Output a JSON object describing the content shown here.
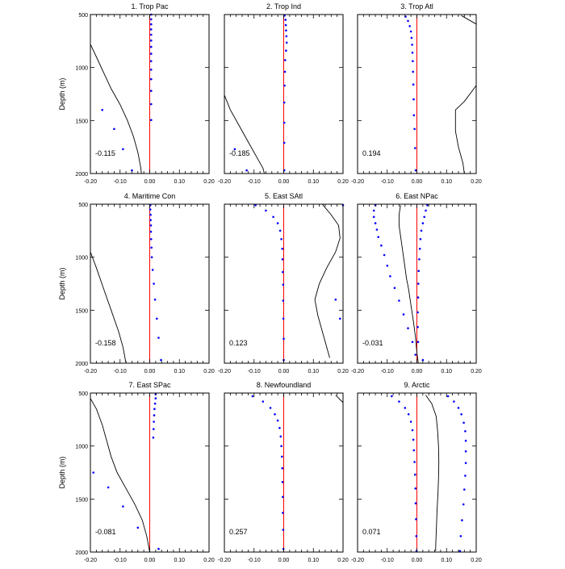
{
  "colors": {
    "zero_line": "#ff0000",
    "dots": "#0000ff",
    "curve": "#000000",
    "axes": "#000000"
  },
  "y_axis_label": "Depth (m)",
  "chart_data": [
    {
      "type": "scatter",
      "title": "1. Trop Pac",
      "annotation": "-0.115",
      "xlim": [
        -0.2,
        0.2
      ],
      "ylim": [
        2000,
        500
      ],
      "ylabel": "Depth (m)",
      "xticks": [
        "-0.20",
        "-0.10",
        "0.00",
        "0.10",
        "0.20"
      ],
      "yticks": [
        "500",
        "1000",
        "1500",
        "2000"
      ],
      "zero_line": 0.0,
      "dots": [
        [
          0.005,
          500
        ],
        [
          0.005,
          545
        ],
        [
          0.005,
          592
        ],
        [
          0.005,
          640
        ],
        [
          0.005,
          690
        ],
        [
          0.005,
          745
        ],
        [
          0.005,
          805
        ],
        [
          0.005,
          870
        ],
        [
          0.005,
          940
        ],
        [
          0.005,
          1020
        ],
        [
          0.005,
          1110
        ],
        [
          0.005,
          1220
        ],
        [
          0.005,
          1345
        ],
        [
          0.005,
          1495
        ],
        [
          -0.16,
          1400
        ],
        [
          -0.12,
          1580
        ],
        [
          -0.09,
          1770
        ],
        [
          -0.06,
          1970
        ]
      ],
      "curve": [
        [
          -0.2,
          780
        ],
        [
          -0.18,
          900
        ],
        [
          -0.155,
          1050
        ],
        [
          -0.13,
          1200
        ],
        [
          -0.1,
          1350
        ],
        [
          -0.075,
          1500
        ],
        [
          -0.055,
          1650
        ],
        [
          -0.04,
          1800
        ],
        [
          -0.03,
          1950
        ],
        [
          -0.028,
          2000
        ]
      ]
    },
    {
      "type": "scatter",
      "title": "2. Trop Ind",
      "annotation": "-0.185",
      "xlim": [
        -0.2,
        0.2
      ],
      "ylim": [
        2000,
        500
      ],
      "ylabel": "Depth (m)",
      "xticks": [
        "-0.20",
        "-0.10",
        "0.00",
        "0.10",
        "0.20"
      ],
      "yticks": [
        "500",
        "1000",
        "1500",
        "2000"
      ],
      "zero_line": 0.0,
      "dots": [
        [
          0.003,
          510
        ],
        [
          0.006,
          550
        ],
        [
          0.007,
          600
        ],
        [
          0.008,
          650
        ],
        [
          0.009,
          705
        ],
        [
          0.01,
          765
        ],
        [
          0.008,
          840
        ],
        [
          0.005,
          930
        ],
        [
          0.004,
          1040
        ],
        [
          0.003,
          1170
        ],
        [
          0.002,
          1330
        ],
        [
          0.002,
          1520
        ],
        [
          0.002,
          1710
        ],
        [
          0.002,
          1970
        ],
        [
          -0.165,
          1770
        ],
        [
          -0.125,
          1970
        ]
      ],
      "curve": [
        [
          -0.2,
          1260
        ],
        [
          -0.18,
          1400
        ],
        [
          -0.15,
          1550
        ],
        [
          -0.12,
          1700
        ],
        [
          -0.09,
          1850
        ],
        [
          -0.07,
          1950
        ],
        [
          -0.065,
          2000
        ]
      ]
    },
    {
      "type": "scatter",
      "title": "3. Trop Atl",
      "annotation": "0.194",
      "xlim": [
        -0.2,
        0.2
      ],
      "ylim": [
        2000,
        500
      ],
      "ylabel": "Depth (m)",
      "xticks": [
        "-0.20",
        "-0.10",
        "0.00",
        "0.10",
        "0.20"
      ],
      "yticks": [
        "500",
        "1000",
        "1500",
        "2000"
      ],
      "zero_line": 0.0,
      "dots": [
        [
          -0.038,
          520
        ],
        [
          -0.03,
          560
        ],
        [
          -0.024,
          610
        ],
        [
          -0.02,
          660
        ],
        [
          -0.018,
          720
        ],
        [
          -0.016,
          785
        ],
        [
          -0.015,
          860
        ],
        [
          -0.014,
          940
        ],
        [
          -0.013,
          1040
        ],
        [
          -0.012,
          1160
        ],
        [
          -0.011,
          1300
        ],
        [
          -0.01,
          1450
        ],
        [
          -0.008,
          1580
        ],
        [
          -0.006,
          1760
        ],
        [
          -0.004,
          1970
        ]
      ],
      "curve": [
        [
          0.15,
          510
        ],
        [
          0.2,
          590
        ],
        [
          0.2,
          1170
        ],
        [
          0.16,
          1320
        ],
        [
          0.13,
          1400
        ],
        [
          0.13,
          1600
        ],
        [
          0.14,
          1750
        ],
        [
          0.155,
          1900
        ],
        [
          0.16,
          2000
        ]
      ]
    },
    {
      "type": "scatter",
      "title": "4. Maritime Con",
      "annotation": "-0.158",
      "xlim": [
        -0.2,
        0.2
      ],
      "ylim": [
        2000,
        500
      ],
      "ylabel": "Depth (m)",
      "xticks": [
        "-0.20",
        "-0.10",
        "0.00",
        "0.10",
        "0.20"
      ],
      "yticks": [
        "500",
        "1000",
        "1500",
        "2000"
      ],
      "zero_line": 0.0,
      "dots": [
        [
          0.002,
          510
        ],
        [
          0.002,
          550
        ],
        [
          0.003,
          600
        ],
        [
          0.003,
          650
        ],
        [
          0.004,
          700
        ],
        [
          0.004,
          760
        ],
        [
          0.005,
          830
        ],
        [
          0.006,
          910
        ],
        [
          0.007,
          1000
        ],
        [
          0.01,
          1120
        ],
        [
          0.014,
          1250
        ],
        [
          0.018,
          1400
        ],
        [
          0.024,
          1580
        ],
        [
          0.03,
          1760
        ],
        [
          0.038,
          1970
        ]
      ],
      "curve": [
        [
          -0.2,
          950
        ],
        [
          -0.18,
          1100
        ],
        [
          -0.155,
          1300
        ],
        [
          -0.13,
          1500
        ],
        [
          -0.105,
          1700
        ],
        [
          -0.09,
          1850
        ],
        [
          -0.08,
          2000
        ]
      ]
    },
    {
      "type": "scatter",
      "title": "5. East SAtl",
      "annotation": "0.123",
      "xlim": [
        -0.2,
        0.2
      ],
      "ylim": [
        2000,
        500
      ],
      "ylabel": "Depth (m)",
      "xticks": [
        "-0.20",
        "-0.10",
        "0.00",
        "0.10",
        "0.20"
      ],
      "yticks": [
        "500",
        "1000",
        "1500",
        "2000"
      ],
      "zero_line": 0.0,
      "dots": [
        [
          -0.095,
          510
        ],
        [
          -0.06,
          560
        ],
        [
          -0.035,
          620
        ],
        [
          -0.02,
          680
        ],
        [
          -0.012,
          750
        ],
        [
          -0.008,
          830
        ],
        [
          -0.005,
          920
        ],
        [
          -0.004,
          1020
        ],
        [
          -0.003,
          1140
        ],
        [
          -0.002,
          1260
        ],
        [
          -0.002,
          1410
        ],
        [
          -0.001,
          1580
        ],
        [
          0.0,
          1770
        ],
        [
          0.0,
          1970
        ],
        [
          0.2,
          510
        ],
        [
          0.175,
          1400
        ],
        [
          0.19,
          1580
        ]
      ],
      "curve": [
        [
          0.13,
          500
        ],
        [
          0.16,
          600
        ],
        [
          0.185,
          700
        ],
        [
          0.19,
          820
        ],
        [
          0.175,
          950
        ],
        [
          0.145,
          1100
        ],
        [
          0.12,
          1250
        ],
        [
          0.105,
          1400
        ],
        [
          0.115,
          1550
        ],
        [
          0.13,
          1700
        ],
        [
          0.145,
          1850
        ],
        [
          0.155,
          1950
        ]
      ]
    },
    {
      "type": "scatter",
      "title": "6. East NPac",
      "annotation": "-0.031",
      "xlim": [
        -0.2,
        0.2
      ],
      "ylim": [
        2000,
        500
      ],
      "ylabel": "Depth (m)",
      "xticks": [
        "-0.20",
        "-0.10",
        "0.00",
        "0.10",
        "0.20"
      ],
      "yticks": [
        "500",
        "1000",
        "1500",
        "2000"
      ],
      "zero_line": 0.0,
      "dots": [
        [
          -0.14,
          510
        ],
        [
          -0.145,
          560
        ],
        [
          -0.145,
          620
        ],
        [
          -0.14,
          680
        ],
        [
          -0.135,
          740
        ],
        [
          -0.13,
          810
        ],
        [
          -0.12,
          890
        ],
        [
          -0.11,
          980
        ],
        [
          -0.1,
          1080
        ],
        [
          -0.09,
          1180
        ],
        [
          -0.075,
          1290
        ],
        [
          -0.06,
          1410
        ],
        [
          -0.045,
          1540
        ],
        [
          -0.03,
          1670
        ],
        [
          -0.015,
          1800
        ],
        [
          -0.005,
          1920
        ],
        [
          0.035,
          510
        ],
        [
          0.03,
          560
        ],
        [
          0.025,
          620
        ],
        [
          0.02,
          680
        ],
        [
          0.015,
          750
        ],
        [
          0.012,
          830
        ],
        [
          0.01,
          920
        ],
        [
          0.008,
          1020
        ],
        [
          0.006,
          1130
        ],
        [
          0.005,
          1250
        ],
        [
          0.004,
          1380
        ],
        [
          0.003,
          1520
        ],
        [
          0.003,
          1660
        ],
        [
          0.004,
          1800
        ],
        [
          0.02,
          1970
        ]
      ],
      "curve": [
        [
          -0.055,
          510
        ],
        [
          -0.06,
          600
        ],
        [
          -0.06,
          700
        ],
        [
          -0.055,
          800
        ],
        [
          -0.05,
          900
        ],
        [
          -0.045,
          1000
        ],
        [
          -0.04,
          1100
        ],
        [
          -0.035,
          1200
        ],
        [
          -0.028,
          1300
        ],
        [
          -0.02,
          1450
        ],
        [
          -0.012,
          1600
        ],
        [
          -0.005,
          1750
        ],
        [
          0.0,
          1900
        ],
        [
          0.005,
          2000
        ]
      ]
    },
    {
      "type": "scatter",
      "title": "7. East SPac",
      "annotation": "-0.081",
      "xlim": [
        -0.2,
        0.2
      ],
      "ylim": [
        2000,
        500
      ],
      "ylabel": "Depth (m)",
      "xticks": [
        "-0.20",
        "-0.10",
        "0.00",
        "0.10",
        "0.20"
      ],
      "yticks": [
        "500",
        "1000",
        "1500",
        "2000"
      ],
      "zero_line": 0.0,
      "dots": [
        [
          0.02,
          510
        ],
        [
          0.02,
          550
        ],
        [
          0.018,
          600
        ],
        [
          0.016,
          650
        ],
        [
          0.015,
          710
        ],
        [
          0.014,
          770
        ],
        [
          0.013,
          840
        ],
        [
          0.012,
          920
        ],
        [
          -0.19,
          1250
        ],
        [
          -0.14,
          1390
        ],
        [
          -0.09,
          1570
        ],
        [
          -0.04,
          1770
        ],
        [
          0.03,
          1970
        ]
      ],
      "curve": [
        [
          -0.2,
          550
        ],
        [
          -0.18,
          650
        ],
        [
          -0.16,
          800
        ],
        [
          -0.145,
          950
        ],
        [
          -0.13,
          1100
        ],
        [
          -0.11,
          1250
        ],
        [
          -0.08,
          1400
        ],
        [
          -0.05,
          1550
        ],
        [
          -0.025,
          1700
        ],
        [
          -0.01,
          1850
        ],
        [
          0.0,
          2000
        ]
      ]
    },
    {
      "type": "scatter",
      "title": "8. Newfoundland",
      "annotation": "0.257",
      "xlim": [
        -0.2,
        0.2
      ],
      "ylim": [
        2000,
        500
      ],
      "ylabel": "Depth (m)",
      "xticks": [
        "-0.20",
        "-0.10",
        "0.00",
        "0.10",
        "0.20"
      ],
      "yticks": [
        "500",
        "1000",
        "1500",
        "2000"
      ],
      "zero_line": 0.0,
      "dots": [
        [
          -0.105,
          530
        ],
        [
          -0.07,
          580
        ],
        [
          -0.045,
          640
        ],
        [
          -0.03,
          700
        ],
        [
          -0.02,
          760
        ],
        [
          -0.014,
          830
        ],
        [
          -0.01,
          910
        ],
        [
          -0.008,
          1000
        ],
        [
          -0.006,
          1100
        ],
        [
          -0.005,
          1210
        ],
        [
          -0.004,
          1340
        ],
        [
          -0.003,
          1480
        ],
        [
          -0.003,
          1630
        ],
        [
          -0.002,
          1790
        ],
        [
          -0.001,
          1970
        ]
      ],
      "curve": [
        [
          0.175,
          520
        ],
        [
          0.2,
          590
        ]
      ]
    },
    {
      "type": "scatter",
      "title": "9. Arctic",
      "annotation": "0.071",
      "xlim": [
        -0.2,
        0.2
      ],
      "ylim": [
        2000,
        500
      ],
      "ylabel": "Depth (m)",
      "xticks": [
        "-0.20",
        "-0.10",
        "0.00",
        "0.10",
        "0.20"
      ],
      "yticks": [
        "500",
        "1000",
        "1500",
        "2000"
      ],
      "zero_line": 0.0,
      "dots": [
        [
          -0.085,
          530
        ],
        [
          -0.06,
          580
        ],
        [
          -0.04,
          640
        ],
        [
          -0.028,
          700
        ],
        [
          -0.02,
          770
        ],
        [
          -0.015,
          850
        ],
        [
          -0.012,
          940
        ],
        [
          -0.01,
          1040
        ],
        [
          -0.008,
          1150
        ],
        [
          -0.006,
          1270
        ],
        [
          -0.005,
          1400
        ],
        [
          -0.004,
          1540
        ],
        [
          -0.003,
          1690
        ],
        [
          -0.002,
          1850
        ],
        [
          -0.001,
          1990
        ],
        [
          0.105,
          530
        ],
        [
          0.125,
          580
        ],
        [
          0.14,
          640
        ],
        [
          0.15,
          700
        ],
        [
          0.158,
          780
        ],
        [
          0.163,
          860
        ],
        [
          0.165,
          950
        ],
        [
          0.165,
          1050
        ],
        [
          0.165,
          1160
        ],
        [
          0.163,
          1280
        ],
        [
          0.16,
          1410
        ],
        [
          0.157,
          1550
        ],
        [
          0.152,
          1700
        ],
        [
          0.148,
          1850
        ],
        [
          0.145,
          1990
        ]
      ],
      "curve": [
        [
          0.03,
          520
        ],
        [
          0.05,
          600
        ],
        [
          0.065,
          720
        ],
        [
          0.07,
          860
        ],
        [
          0.073,
          1000
        ],
        [
          0.074,
          1150
        ],
        [
          0.073,
          1300
        ],
        [
          0.071,
          1450
        ],
        [
          0.068,
          1600
        ],
        [
          0.066,
          1750
        ],
        [
          0.064,
          1900
        ],
        [
          0.063,
          1990
        ]
      ]
    }
  ]
}
